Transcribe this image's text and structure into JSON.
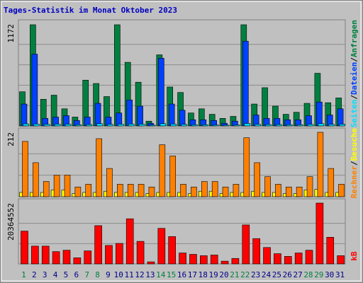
{
  "title": "Tages-Statistik im Monat Oktober 2023",
  "legend_separator": "/",
  "chart_data": [
    {
      "type": "bar",
      "ylim": [
        0,
        1172
      ],
      "yticks": [
        1172
      ],
      "grid": true,
      "series": [
        {
          "name": "Anfragen",
          "color": "#008040",
          "values": [
            393,
            1164,
            307,
            354,
            197,
            102,
            527,
            488,
            338,
            1164,
            732,
            503,
            55,
            818,
            448,
            385,
            149,
            197,
            134,
            87,
            110,
            1164,
            252,
            440,
            228,
            134,
            157,
            260,
            606,
            267,
            322
          ]
        },
        {
          "name": "Dateien",
          "color": "#0040ff",
          "values": [
            252,
            826,
            87,
            102,
            118,
            63,
            102,
            260,
            102,
            149,
            299,
            228,
            31,
            779,
            252,
            181,
            71,
            71,
            63,
            31,
            55,
            975,
            126,
            87,
            87,
            71,
            71,
            118,
            275,
            126,
            197
          ]
        },
        {
          "name": "Seiten",
          "color": "#00e0ff",
          "values": [
            24,
            22,
            18,
            20,
            20,
            14,
            16,
            26,
            18,
            20,
            22,
            20,
            10,
            26,
            22,
            18,
            14,
            14,
            12,
            10,
            12,
            28,
            18,
            16,
            16,
            14,
            14,
            18,
            26,
            18,
            20
          ]
        }
      ]
    },
    {
      "type": "bar",
      "ylim": [
        0,
        212
      ],
      "yticks": [
        212
      ],
      "grid": true,
      "series": [
        {
          "name": "Besuche",
          "color": "#ffff00",
          "values": [
            14,
            14,
            14,
            22,
            22,
            10,
            14,
            14,
            18,
            14,
            14,
            14,
            10,
            14,
            14,
            14,
            10,
            18,
            18,
            10,
            14,
            14,
            18,
            14,
            14,
            10,
            10,
            22,
            24,
            14,
            14
          ]
        },
        {
          "name": "Rechner",
          "color": "#ff8000",
          "values": [
            182,
            112,
            50,
            71,
            71,
            32,
            41,
            191,
            93,
            41,
            41,
            41,
            32,
            171,
            134,
            41,
            32,
            50,
            50,
            32,
            41,
            194,
            112,
            66,
            41,
            32,
            32,
            66,
            212,
            93,
            41
          ]
        }
      ]
    },
    {
      "type": "bar",
      "ylim": [
        0,
        20364552
      ],
      "yticks": [
        20364552
      ],
      "grid": true,
      "categories": [
        "1",
        "2",
        "3",
        "4",
        "5",
        "6",
        "7",
        "8",
        "9",
        "10",
        "11",
        "12",
        "13",
        "14",
        "15",
        "16",
        "17",
        "18",
        "19",
        "20",
        "21",
        "22",
        "23",
        "24",
        "25",
        "26",
        "27",
        "28",
        "29",
        "30",
        "31"
      ],
      "category_colors": [
        "#008040",
        "#00008b",
        "#00008b",
        "#00008b",
        "#00008b",
        "#00008b",
        "#008040",
        "#008040",
        "#00008b",
        "#00008b",
        "#00008b",
        "#00008b",
        "#00008b",
        "#008040",
        "#008040",
        "#00008b",
        "#00008b",
        "#00008b",
        "#00008b",
        "#00008b",
        "#008040",
        "#008040",
        "#00008b",
        "#00008b",
        "#00008b",
        "#00008b",
        "#00008b",
        "#008040",
        "#008040",
        "#00008b",
        "#00008b"
      ],
      "series": [
        {
          "name": "kB",
          "color": "#ff0000",
          "values": [
            10980000,
            5950000,
            5950000,
            4120000,
            4580000,
            2060000,
            4350000,
            12810000,
            6180000,
            6860000,
            15100000,
            7550000,
            690000,
            11900000,
            9150000,
            3660000,
            3200000,
            2750000,
            2970000,
            920000,
            1830000,
            13040000,
            8470000,
            5490000,
            3430000,
            2520000,
            3660000,
            4580000,
            20364552,
            8920000,
            2750000
          ]
        }
      ]
    }
  ]
}
